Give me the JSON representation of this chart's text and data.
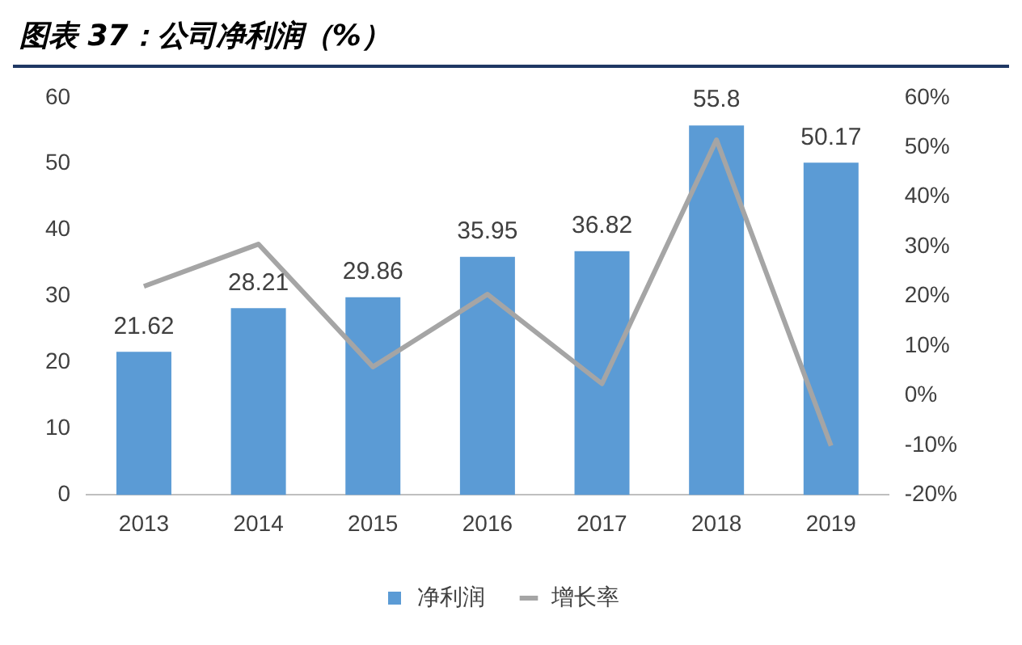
{
  "chart_data": {
    "type": "bar",
    "title": "图表 37：公司净利润（%）",
    "categories": [
      "2013",
      "2014",
      "2015",
      "2016",
      "2017",
      "2018",
      "2019"
    ],
    "series": [
      {
        "name": "净利润",
        "color": "#5b9bd5",
        "values": [
          21.62,
          28.21,
          29.86,
          35.95,
          36.82,
          55.8,
          50.17
        ],
        "value_labels": [
          "21.62",
          "28.21",
          "29.86",
          "35.95",
          "36.82",
          "55.8",
          "50.17"
        ]
      },
      {
        "name": "增长率",
        "type": "line",
        "axis": "y2",
        "color": "#a5a5a5",
        "values": [
          22,
          30.5,
          5.8,
          20.4,
          2.4,
          51.5,
          -10.1
        ]
      }
    ],
    "ylim": [
      0,
      60
    ],
    "yticks": [
      0,
      10,
      20,
      30,
      40,
      50,
      60
    ],
    "y2lim": [
      -20,
      60
    ],
    "y2ticks": [
      {
        "value": -20,
        "label": "-20%"
      },
      {
        "value": -10,
        "label": "-10%"
      },
      {
        "value": 0,
        "label": "0%"
      },
      {
        "value": 10,
        "label": "10%"
      },
      {
        "value": 20,
        "label": "20%"
      },
      {
        "value": 30,
        "label": "30%"
      },
      {
        "value": 40,
        "label": "40%"
      },
      {
        "value": 50,
        "label": "50%"
      },
      {
        "value": 60,
        "label": "60%"
      }
    ],
    "legend": "bottom",
    "marker": "none",
    "line_style": "solid"
  }
}
